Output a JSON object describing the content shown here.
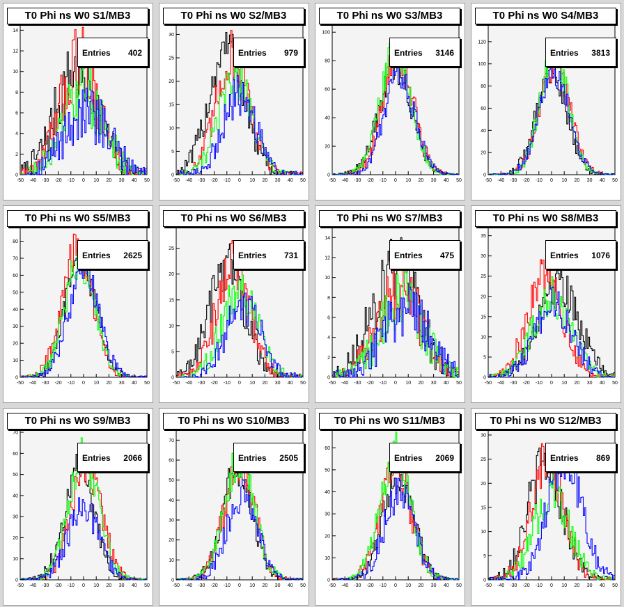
{
  "chart_data": [
    {
      "type": "histogram",
      "title": "T0 Phi ns W0 S1/MB3",
      "entries_label": "Entries",
      "entries": "402",
      "xlim": [
        -50,
        50
      ],
      "ylim": [
        0,
        14.5
      ],
      "yticks": [
        0,
        2,
        4,
        6,
        8,
        10,
        12,
        14
      ],
      "xticks": [
        -50,
        -40,
        -30,
        -20,
        -10,
        0,
        10,
        20,
        30,
        40,
        50
      ],
      "series": [
        {
          "color": "#000000",
          "mean": -5,
          "sigma": 17,
          "peak": 10
        },
        {
          "color": "#ff0000",
          "mean": -3,
          "sigma": 15,
          "peak": 11
        },
        {
          "color": "#00ff00",
          "mean": 0,
          "sigma": 16,
          "peak": 8
        },
        {
          "color": "#0000ff",
          "mean": 2,
          "sigma": 18,
          "peak": 6
        }
      ]
    },
    {
      "type": "histogram",
      "title": "T0 Phi ns W0 S2/MB3",
      "entries_label": "Entries",
      "entries": "979",
      "xlim": [
        -50,
        50
      ],
      "ylim": [
        0,
        32
      ],
      "yticks": [
        0,
        5,
        10,
        15,
        20,
        25,
        30
      ],
      "xticks": [
        -50,
        -40,
        -30,
        -20,
        -10,
        0,
        10,
        20,
        30,
        40,
        50
      ],
      "series": [
        {
          "color": "#000000",
          "mean": -10,
          "sigma": 14,
          "peak": 27
        },
        {
          "color": "#ff0000",
          "mean": -5,
          "sigma": 13,
          "peak": 26
        },
        {
          "color": "#00ff00",
          "mean": -3,
          "sigma": 13,
          "peak": 21
        },
        {
          "color": "#0000ff",
          "mean": 0,
          "sigma": 13,
          "peak": 17
        }
      ]
    },
    {
      "type": "histogram",
      "title": "T0 Phi ns W0 S3/MB3",
      "entries_label": "Entries",
      "entries": "3146",
      "xlim": [
        -50,
        50
      ],
      "ylim": [
        0,
        105
      ],
      "yticks": [
        0,
        20,
        40,
        60,
        80,
        100
      ],
      "xticks": [
        -50,
        -40,
        -30,
        -20,
        -10,
        0,
        10,
        20,
        30,
        40,
        50
      ],
      "series": [
        {
          "color": "#000000",
          "mean": 0,
          "sigma": 13,
          "peak": 75
        },
        {
          "color": "#ff0000",
          "mean": 2,
          "sigma": 12,
          "peak": 85
        },
        {
          "color": "#00ff00",
          "mean": 0,
          "sigma": 12,
          "peak": 88
        },
        {
          "color": "#0000ff",
          "mean": 3,
          "sigma": 12,
          "peak": 70
        }
      ]
    },
    {
      "type": "histogram",
      "title": "T0 Phi ns W0 S4/MB3",
      "entries_label": "Entries",
      "entries": "3813",
      "xlim": [
        -50,
        50
      ],
      "ylim": [
        0,
        135
      ],
      "yticks": [
        0,
        20,
        40,
        60,
        80,
        100,
        120
      ],
      "xticks": [
        -50,
        -40,
        -30,
        -20,
        -10,
        0,
        10,
        20,
        30,
        40,
        50
      ],
      "series": [
        {
          "color": "#000000",
          "mean": 0,
          "sigma": 12,
          "peak": 95
        },
        {
          "color": "#ff0000",
          "mean": 3,
          "sigma": 12,
          "peak": 100
        },
        {
          "color": "#00ff00",
          "mean": 2,
          "sigma": 11,
          "peak": 112
        },
        {
          "color": "#0000ff",
          "mean": 2,
          "sigma": 12,
          "peak": 92
        }
      ]
    },
    {
      "type": "histogram",
      "title": "T0 Phi ns W0 S5/MB3",
      "entries_label": "Entries",
      "entries": "2625",
      "xlim": [
        -50,
        50
      ],
      "ylim": [
        0,
        88
      ],
      "yticks": [
        0,
        10,
        20,
        30,
        40,
        50,
        60,
        70,
        80
      ],
      "xticks": [
        -50,
        -40,
        -30,
        -20,
        -10,
        0,
        10,
        20,
        30,
        40,
        50
      ],
      "series": [
        {
          "color": "#000000",
          "mean": -2,
          "sigma": 12,
          "peak": 70
        },
        {
          "color": "#ff0000",
          "mean": -5,
          "sigma": 12,
          "peak": 75
        },
        {
          "color": "#00ff00",
          "mean": -3,
          "sigma": 12,
          "peak": 68
        },
        {
          "color": "#0000ff",
          "mean": 0,
          "sigma": 12,
          "peak": 62
        }
      ]
    },
    {
      "type": "histogram",
      "title": "T0 Phi ns W0 S6/MB3",
      "entries_label": "Entries",
      "entries": "731",
      "xlim": [
        -50,
        50
      ],
      "ylim": [
        0,
        29
      ],
      "yticks": [
        0,
        5,
        10,
        15,
        20,
        25
      ],
      "xticks": [
        -50,
        -40,
        -30,
        -20,
        -10,
        0,
        10,
        20,
        30,
        40,
        50
      ],
      "series": [
        {
          "color": "#000000",
          "mean": -10,
          "sigma": 14,
          "peak": 22
        },
        {
          "color": "#ff0000",
          "mean": -5,
          "sigma": 13,
          "peak": 22
        },
        {
          "color": "#00ff00",
          "mean": 0,
          "sigma": 14,
          "peak": 17
        },
        {
          "color": "#0000ff",
          "mean": 3,
          "sigma": 14,
          "peak": 14
        }
      ]
    },
    {
      "type": "histogram",
      "title": "T0 Phi ns W0 S7/MB3",
      "entries_label": "Entries",
      "entries": "475",
      "xlim": [
        -50,
        50
      ],
      "ylim": [
        0,
        15
      ],
      "yticks": [
        0,
        2,
        4,
        6,
        8,
        10,
        12,
        14
      ],
      "xticks": [
        -50,
        -40,
        -30,
        -20,
        -10,
        0,
        10,
        20,
        30,
        40,
        50
      ],
      "series": [
        {
          "color": "#000000",
          "mean": 0,
          "sigma": 18,
          "peak": 11
        },
        {
          "color": "#ff0000",
          "mean": 3,
          "sigma": 17,
          "peak": 9
        },
        {
          "color": "#00ff00",
          "mean": 5,
          "sigma": 17,
          "peak": 8
        },
        {
          "color": "#0000ff",
          "mean": 8,
          "sigma": 18,
          "peak": 7
        }
      ]
    },
    {
      "type": "histogram",
      "title": "T0 Phi ns W0 S8/MB3",
      "entries_label": "Entries",
      "entries": "1076",
      "xlim": [
        -50,
        50
      ],
      "ylim": [
        0,
        37
      ],
      "yticks": [
        0,
        5,
        10,
        15,
        20,
        25,
        30,
        35
      ],
      "xticks": [
        -50,
        -40,
        -30,
        -20,
        -10,
        0,
        10,
        20,
        30,
        40,
        50
      ],
      "series": [
        {
          "color": "#000000",
          "mean": 5,
          "sigma": 16,
          "peak": 24
        },
        {
          "color": "#ff0000",
          "mean": -5,
          "sigma": 14,
          "peak": 25
        },
        {
          "color": "#00ff00",
          "mean": 0,
          "sigma": 15,
          "peak": 20
        },
        {
          "color": "#0000ff",
          "mean": 2,
          "sigma": 15,
          "peak": 18
        }
      ]
    },
    {
      "type": "histogram",
      "title": "T0 Phi ns W0 S9/MB3",
      "entries_label": "Entries",
      "entries": "2066",
      "xlim": [
        -50,
        50
      ],
      "ylim": [
        0,
        71
      ],
      "yticks": [
        0,
        10,
        20,
        30,
        40,
        50,
        60,
        70
      ],
      "xticks": [
        -50,
        -40,
        -30,
        -20,
        -10,
        0,
        10,
        20,
        30,
        40,
        50
      ],
      "series": [
        {
          "color": "#000000",
          "mean": -3,
          "sigma": 12,
          "peak": 52
        },
        {
          "color": "#ff0000",
          "mean": 2,
          "sigma": 12,
          "peak": 55
        },
        {
          "color": "#00ff00",
          "mean": 0,
          "sigma": 12,
          "peak": 58
        },
        {
          "color": "#0000ff",
          "mean": 0,
          "sigma": 12,
          "peak": 35
        }
      ]
    },
    {
      "type": "histogram",
      "title": "T0 Phi ns W0 S10/MB3",
      "entries_label": "Entries",
      "entries": "2505",
      "xlim": [
        -50,
        50
      ],
      "ylim": [
        0,
        75
      ],
      "yticks": [
        0,
        10,
        20,
        30,
        40,
        50,
        60,
        70
      ],
      "xticks": [
        -50,
        -40,
        -30,
        -20,
        -10,
        0,
        10,
        20,
        30,
        40,
        50
      ],
      "series": [
        {
          "color": "#000000",
          "mean": -2,
          "sigma": 12,
          "peak": 55
        },
        {
          "color": "#ff0000",
          "mean": 0,
          "sigma": 12,
          "peak": 58
        },
        {
          "color": "#00ff00",
          "mean": 0,
          "sigma": 12,
          "peak": 60
        },
        {
          "color": "#0000ff",
          "mean": 2,
          "sigma": 12,
          "peak": 42
        }
      ]
    },
    {
      "type": "histogram",
      "title": "T0 Phi ns W0 S11/MB3",
      "entries_label": "Entries",
      "entries": "2069",
      "xlim": [
        -50,
        50
      ],
      "ylim": [
        0,
        68
      ],
      "yticks": [
        0,
        10,
        20,
        30,
        40,
        50,
        60
      ],
      "xticks": [
        -50,
        -40,
        -30,
        -20,
        -10,
        0,
        10,
        20,
        30,
        40,
        50
      ],
      "series": [
        {
          "color": "#000000",
          "mean": 2,
          "sigma": 12,
          "peak": 48
        },
        {
          "color": "#ff0000",
          "mean": 0,
          "sigma": 12,
          "peak": 52
        },
        {
          "color": "#00ff00",
          "mean": 0,
          "sigma": 12,
          "peak": 58
        },
        {
          "color": "#0000ff",
          "mean": 3,
          "sigma": 12,
          "peak": 40
        }
      ]
    },
    {
      "type": "histogram",
      "title": "T0 Phi ns W0 S12/MB3",
      "entries_label": "Entries",
      "entries": "869",
      "xlim": [
        -50,
        50
      ],
      "ylim": [
        0,
        31
      ],
      "yticks": [
        0,
        5,
        10,
        15,
        20,
        25,
        30
      ],
      "xticks": [
        -50,
        -40,
        -30,
        -20,
        -10,
        0,
        10,
        20,
        30,
        40,
        50
      ],
      "series": [
        {
          "color": "#000000",
          "mean": -5,
          "sigma": 14,
          "peak": 24
        },
        {
          "color": "#ff0000",
          "mean": -3,
          "sigma": 13,
          "peak": 25
        },
        {
          "color": "#00ff00",
          "mean": 0,
          "sigma": 14,
          "peak": 18
        },
        {
          "color": "#0000ff",
          "mean": 10,
          "sigma": 14,
          "peak": 24
        }
      ]
    }
  ]
}
